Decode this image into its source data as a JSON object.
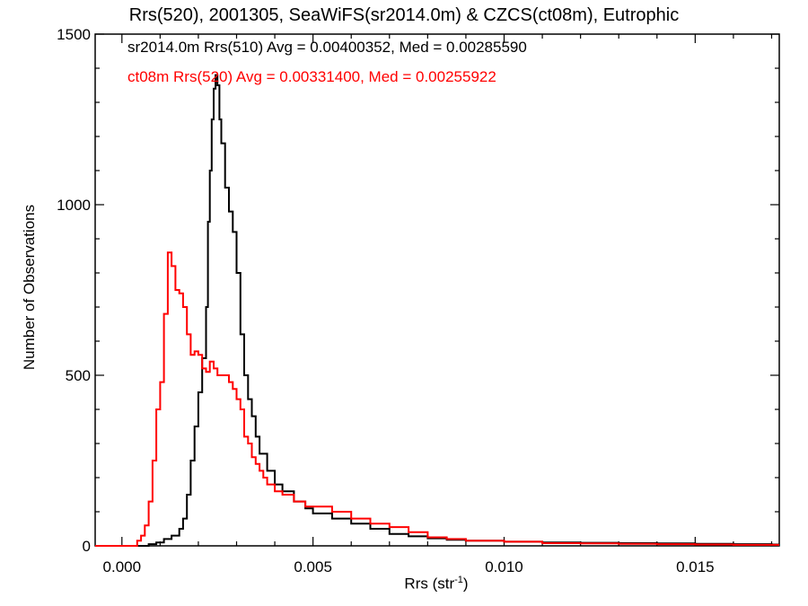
{
  "chart_data": {
    "type": "histogram",
    "title": "Rrs(520), 2001305, SeaWiFS(sr2014.0m) & CZCS(ct08m), Eutrophic",
    "xlabel": "Rrs (str",
    "xlabel_sup": "-1",
    "xlabel_close": ")",
    "ylabel": "Number of Observations",
    "xlim": [
      -0.0007,
      0.0172
    ],
    "ylim": [
      0,
      1500
    ],
    "xticks": [
      0.0,
      0.005,
      0.01,
      0.015
    ],
    "xtick_labels": [
      "0.000",
      "0.005",
      "0.010",
      "0.015"
    ],
    "yticks": [
      0,
      500,
      1000,
      1500
    ],
    "ytick_labels": [
      "0",
      "500",
      "1000",
      "1500"
    ],
    "legend_placement": "top-left",
    "series": [
      {
        "name": "sr2014.0m Rrs(510) Avg = 0.00400352, Med = 0.00285590",
        "color": "#000000",
        "points": [
          [
            -0.0007,
            0
          ],
          [
            0.0005,
            0
          ],
          [
            0.0007,
            5
          ],
          [
            0.0009,
            10
          ],
          [
            0.0011,
            20
          ],
          [
            0.0013,
            30
          ],
          [
            0.0015,
            50
          ],
          [
            0.0016,
            80
          ],
          [
            0.0017,
            150
          ],
          [
            0.0018,
            250
          ],
          [
            0.0019,
            350
          ],
          [
            0.002,
            450
          ],
          [
            0.0021,
            550
          ],
          [
            0.0022,
            700
          ],
          [
            0.00225,
            950
          ],
          [
            0.0023,
            1100
          ],
          [
            0.00235,
            1250
          ],
          [
            0.0024,
            1340
          ],
          [
            0.00245,
            1380
          ],
          [
            0.0025,
            1350
          ],
          [
            0.00255,
            1250
          ],
          [
            0.0026,
            1180
          ],
          [
            0.0027,
            1050
          ],
          [
            0.0028,
            980
          ],
          [
            0.0029,
            920
          ],
          [
            0.003,
            800
          ],
          [
            0.0031,
            620
          ],
          [
            0.0032,
            500
          ],
          [
            0.0033,
            430
          ],
          [
            0.0034,
            380
          ],
          [
            0.0035,
            320
          ],
          [
            0.0036,
            270
          ],
          [
            0.0038,
            220
          ],
          [
            0.004,
            180
          ],
          [
            0.0042,
            160
          ],
          [
            0.0045,
            130
          ],
          [
            0.0048,
            110
          ],
          [
            0.005,
            95
          ],
          [
            0.0055,
            80
          ],
          [
            0.006,
            65
          ],
          [
            0.0065,
            50
          ],
          [
            0.007,
            35
          ],
          [
            0.0075,
            28
          ],
          [
            0.008,
            22
          ],
          [
            0.0085,
            18
          ],
          [
            0.009,
            15
          ],
          [
            0.01,
            12
          ],
          [
            0.011,
            10
          ],
          [
            0.012,
            9
          ],
          [
            0.013,
            8
          ],
          [
            0.014,
            7
          ],
          [
            0.015,
            6
          ],
          [
            0.016,
            5
          ],
          [
            0.017,
            4
          ],
          [
            0.0172,
            4
          ]
        ]
      },
      {
        "name": "ct08m Rrs(520) Avg = 0.00331400, Med = 0.00255922",
        "color": "#ff0000",
        "points": [
          [
            -0.0007,
            0
          ],
          [
            0.0003,
            0
          ],
          [
            0.0004,
            15
          ],
          [
            0.0005,
            30
          ],
          [
            0.0006,
            60
          ],
          [
            0.0007,
            130
          ],
          [
            0.0008,
            250
          ],
          [
            0.0009,
            400
          ],
          [
            0.001,
            480
          ],
          [
            0.0011,
            680
          ],
          [
            0.0012,
            860
          ],
          [
            0.0013,
            820
          ],
          [
            0.0014,
            750
          ],
          [
            0.0015,
            740
          ],
          [
            0.0016,
            700
          ],
          [
            0.0017,
            620
          ],
          [
            0.0018,
            560
          ],
          [
            0.0019,
            570
          ],
          [
            0.002,
            560
          ],
          [
            0.0021,
            520
          ],
          [
            0.0022,
            510
          ],
          [
            0.0023,
            540
          ],
          [
            0.0024,
            520
          ],
          [
            0.0025,
            500
          ],
          [
            0.0026,
            500
          ],
          [
            0.0027,
            500
          ],
          [
            0.0028,
            480
          ],
          [
            0.0029,
            460
          ],
          [
            0.003,
            430
          ],
          [
            0.0031,
            400
          ],
          [
            0.0032,
            320
          ],
          [
            0.0033,
            300
          ],
          [
            0.0034,
            260
          ],
          [
            0.0035,
            240
          ],
          [
            0.0036,
            220
          ],
          [
            0.0037,
            200
          ],
          [
            0.0038,
            180
          ],
          [
            0.004,
            160
          ],
          [
            0.0042,
            150
          ],
          [
            0.0045,
            130
          ],
          [
            0.0048,
            115
          ],
          [
            0.005,
            115
          ],
          [
            0.0055,
            100
          ],
          [
            0.006,
            80
          ],
          [
            0.0065,
            65
          ],
          [
            0.007,
            55
          ],
          [
            0.0075,
            40
          ],
          [
            0.008,
            25
          ],
          [
            0.0085,
            20
          ],
          [
            0.009,
            15
          ],
          [
            0.01,
            12
          ],
          [
            0.011,
            8
          ],
          [
            0.012,
            7
          ],
          [
            0.013,
            6
          ],
          [
            0.014,
            5
          ],
          [
            0.015,
            4
          ],
          [
            0.016,
            3
          ],
          [
            0.017,
            3
          ],
          [
            0.0172,
            3
          ]
        ]
      }
    ]
  }
}
